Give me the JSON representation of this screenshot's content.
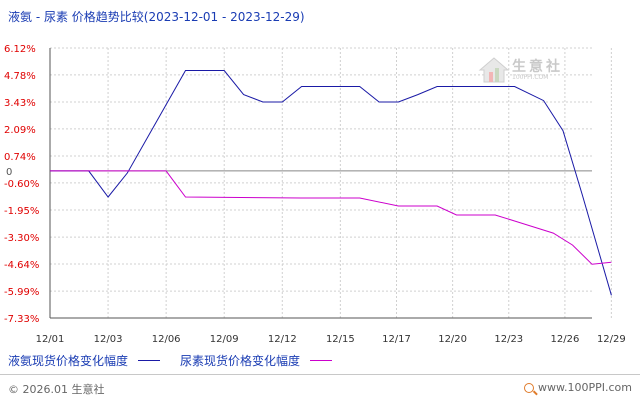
{
  "title": "液氨 - 尿素 价格趋势比较(2023-12-01 - 2023-12-29)",
  "watermark": {
    "text": "生意社",
    "url": "100PPI.COM"
  },
  "legend": {
    "series1": "液氨现货价格变化幅度",
    "series2": "尿素现货价格变化幅度"
  },
  "footer": {
    "copyright": "© 2026.01 生意社",
    "site": "www.100PPI.com"
  },
  "colors": {
    "series1": "#1a1aa6",
    "series2": "#cc00cc",
    "grid": "#d0d0d0",
    "axis": "#555555",
    "zero": "#888888",
    "label": "#e00000"
  },
  "chart_data": {
    "type": "line",
    "title": "液氨 - 尿素 价格趋势比较(2023-12-01 - 2023-12-29)",
    "ylim": [
      -7.33,
      6.12
    ],
    "yticks": [
      "6.12%",
      "4.78%",
      "3.43%",
      "2.09%",
      "0.74%",
      "0",
      "-0.60%",
      "-1.95%",
      "-3.30%",
      "-4.64%",
      "-5.99%",
      "-7.33%"
    ],
    "ytick_values": [
      6.12,
      4.78,
      3.43,
      2.09,
      0.74,
      0,
      -0.6,
      -1.95,
      -3.3,
      -4.64,
      -5.99,
      -7.33
    ],
    "xlim": [
      1,
      29
    ],
    "xticks": [
      "12/01",
      "12/03",
      "12/06",
      "12/09",
      "12/12",
      "12/15",
      "12/17",
      "12/20",
      "12/23",
      "12/26",
      "12/29"
    ],
    "xtick_days": [
      1,
      4,
      7,
      10,
      13,
      16,
      18.9,
      21.8,
      24.7,
      27.6,
      30
    ],
    "grid": true,
    "series": [
      {
        "name": "液氨现货价格变化幅度",
        "x": [
          1,
          3,
          4,
          5,
          8,
          10,
          11,
          12,
          13,
          14,
          16,
          17,
          18,
          19,
          20,
          21,
          22,
          23,
          25,
          26.5,
          27.5,
          28.5,
          30
        ],
        "values": [
          0,
          0,
          -1.3,
          -0.1,
          5.0,
          5.0,
          3.8,
          3.43,
          3.43,
          4.2,
          4.2,
          4.2,
          3.43,
          3.43,
          3.8,
          4.2,
          4.2,
          4.2,
          4.2,
          3.5,
          2.0,
          -1.2,
          -6.2
        ]
      },
      {
        "name": "尿素现货价格变化幅度",
        "x": [
          1,
          7,
          8,
          14,
          17,
          19,
          20,
          21,
          22,
          23,
          24,
          25,
          27,
          28,
          29,
          30
        ],
        "values": [
          0,
          0,
          -1.3,
          -1.35,
          -1.35,
          -1.75,
          -1.75,
          -1.75,
          -2.2,
          -2.2,
          -2.2,
          -2.5,
          -3.1,
          -3.7,
          -4.65,
          -4.55
        ]
      }
    ]
  }
}
